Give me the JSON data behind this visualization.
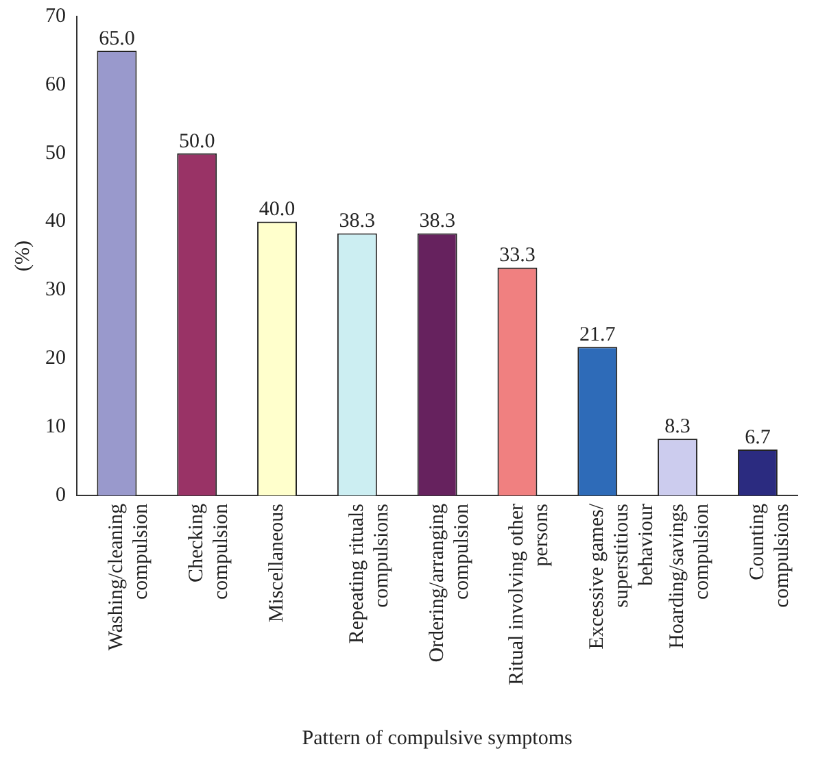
{
  "chart_data": {
    "type": "bar",
    "categories": [
      "Washing/cleaning\ncompulsion",
      "Checking\ncompulsion",
      "Miscellaneous",
      "Repeating rituals\ncompulsions",
      "Ordering/arranging\ncompulsion",
      "Ritual involving other\npersons",
      "Excessive games/\nsuperstitious\nbehaviour",
      "Hoarding/savings\ncompulsion",
      "Counting\ncompulsions"
    ],
    "values": [
      65.0,
      50.0,
      40.0,
      38.3,
      38.3,
      33.3,
      21.7,
      8.3,
      6.7
    ],
    "colors": [
      "#9999cc",
      "#993366",
      "#ffffcc",
      "#cceef2",
      "#66225e",
      "#f08080",
      "#2e6bb8",
      "#ccccee",
      "#2b2b80"
    ],
    "ylim": [
      0,
      70
    ],
    "yticks": [
      0,
      10,
      20,
      30,
      40,
      50,
      60,
      70
    ],
    "ylabel": "(%)",
    "xlabel": "Pattern of compulsive symptoms",
    "value_labels": [
      "65.0",
      "50.0",
      "40.0",
      "38.3",
      "38.3",
      "33.3",
      "21.7",
      "8.3",
      "6.7"
    ],
    "grid": false,
    "legend": false
  }
}
